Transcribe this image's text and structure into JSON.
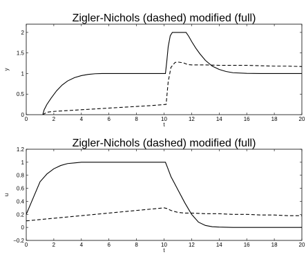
{
  "chart_data": [
    {
      "type": "line",
      "title": "Zigler-Nichols (dashed) modified (full)",
      "xlabel": "t",
      "ylabel": "y",
      "xlim": [
        0,
        20
      ],
      "ylim": [
        0,
        2.2
      ],
      "xticks": [
        "0",
        "2",
        "4",
        "6",
        "8",
        "10",
        "12",
        "14",
        "16",
        "18",
        "20"
      ],
      "yticks": [
        "0",
        "0.5",
        "1",
        "1.5",
        "2"
      ],
      "grid": false,
      "series": [
        {
          "style": "solid",
          "x": [
            1.2,
            1.3,
            1.5,
            1.8,
            2.2,
            2.6,
            3.0,
            3.5,
            4.0,
            4.5,
            5.0,
            5.5,
            6.0,
            7.0,
            8.0,
            9.0,
            10.1,
            10.2,
            10.3,
            10.45,
            10.6,
            10.8,
            11.0,
            11.3,
            11.6,
            11.8,
            12.0,
            12.3,
            12.6,
            13.0,
            13.5,
            14.0,
            14.5,
            15.0,
            16.0,
            17.0,
            18.0,
            19.0,
            20.0
          ],
          "y": [
            0.0,
            0.12,
            0.25,
            0.4,
            0.58,
            0.72,
            0.82,
            0.9,
            0.95,
            0.98,
            0.995,
            1.0,
            1.0,
            1.0,
            1.0,
            1.0,
            1.0,
            1.3,
            1.65,
            1.92,
            2.0,
            2.0,
            2.0,
            2.0,
            2.0,
            1.9,
            1.78,
            1.62,
            1.48,
            1.32,
            1.18,
            1.1,
            1.05,
            1.02,
            1.005,
            1.0,
            1.0,
            1.0,
            1.0
          ]
        },
        {
          "style": "dashed",
          "x": [
            1.2,
            1.5,
            2.0,
            3.0,
            4.0,
            5.0,
            6.0,
            7.0,
            8.0,
            9.0,
            10.15,
            10.3,
            10.5,
            10.8,
            11.0,
            11.4,
            11.7,
            12.0,
            13.0,
            14.0,
            15.0,
            16.0,
            17.0,
            18.0,
            19.0,
            20.0
          ],
          "y": [
            0.0,
            0.06,
            0.08,
            0.1,
            0.12,
            0.14,
            0.16,
            0.18,
            0.2,
            0.22,
            0.25,
            0.8,
            1.15,
            1.27,
            1.28,
            1.26,
            1.22,
            1.21,
            1.21,
            1.2,
            1.2,
            1.2,
            1.19,
            1.18,
            1.18,
            1.17
          ]
        }
      ]
    },
    {
      "type": "line",
      "title": "Zigler-Nichols (dashed) modified (full)",
      "xlabel": "t",
      "ylabel": "u",
      "xlim": [
        0,
        20
      ],
      "ylim": [
        -0.2,
        1.2
      ],
      "xticks": [
        "0",
        "2",
        "4",
        "6",
        "8",
        "10",
        "12",
        "14",
        "16",
        "18",
        "20"
      ],
      "yticks": [
        "−0.2",
        "0",
        "0.2",
        "0.4",
        "0.6",
        "0.8",
        "1",
        "1.2"
      ],
      "grid": false,
      "series": [
        {
          "style": "solid",
          "x": [
            0.0,
            0.5,
            1.0,
            1.5,
            2.0,
            2.5,
            3.0,
            3.5,
            4.0,
            5.0,
            6.0,
            7.0,
            8.0,
            9.0,
            10.1,
            10.25,
            10.5,
            11.0,
            11.5,
            12.0,
            12.5,
            13.0,
            13.5,
            14.0,
            15.0,
            16.0,
            17.0,
            18.0,
            19.0,
            20.0
          ],
          "y": [
            0.2,
            0.45,
            0.7,
            0.82,
            0.9,
            0.95,
            0.98,
            0.99,
            1.0,
            1.0,
            1.0,
            1.0,
            1.0,
            1.0,
            1.0,
            0.92,
            0.78,
            0.58,
            0.38,
            0.2,
            0.08,
            0.03,
            0.01,
            0.005,
            0.0,
            0.0,
            0.0,
            0.0,
            0.0,
            0.0
          ]
        },
        {
          "style": "dashed",
          "x": [
            0.0,
            1.0,
            2.0,
            3.0,
            4.0,
            5.0,
            6.0,
            7.0,
            8.0,
            9.0,
            10.0,
            10.2,
            10.5,
            11.0,
            11.5,
            12.0,
            13.0,
            14.0,
            15.0,
            16.0,
            17.0,
            18.0,
            19.0,
            20.0
          ],
          "y": [
            0.1,
            0.12,
            0.14,
            0.16,
            0.18,
            0.2,
            0.22,
            0.24,
            0.26,
            0.28,
            0.3,
            0.29,
            0.26,
            0.23,
            0.22,
            0.22,
            0.21,
            0.21,
            0.2,
            0.2,
            0.19,
            0.19,
            0.18,
            0.18
          ]
        }
      ]
    }
  ]
}
